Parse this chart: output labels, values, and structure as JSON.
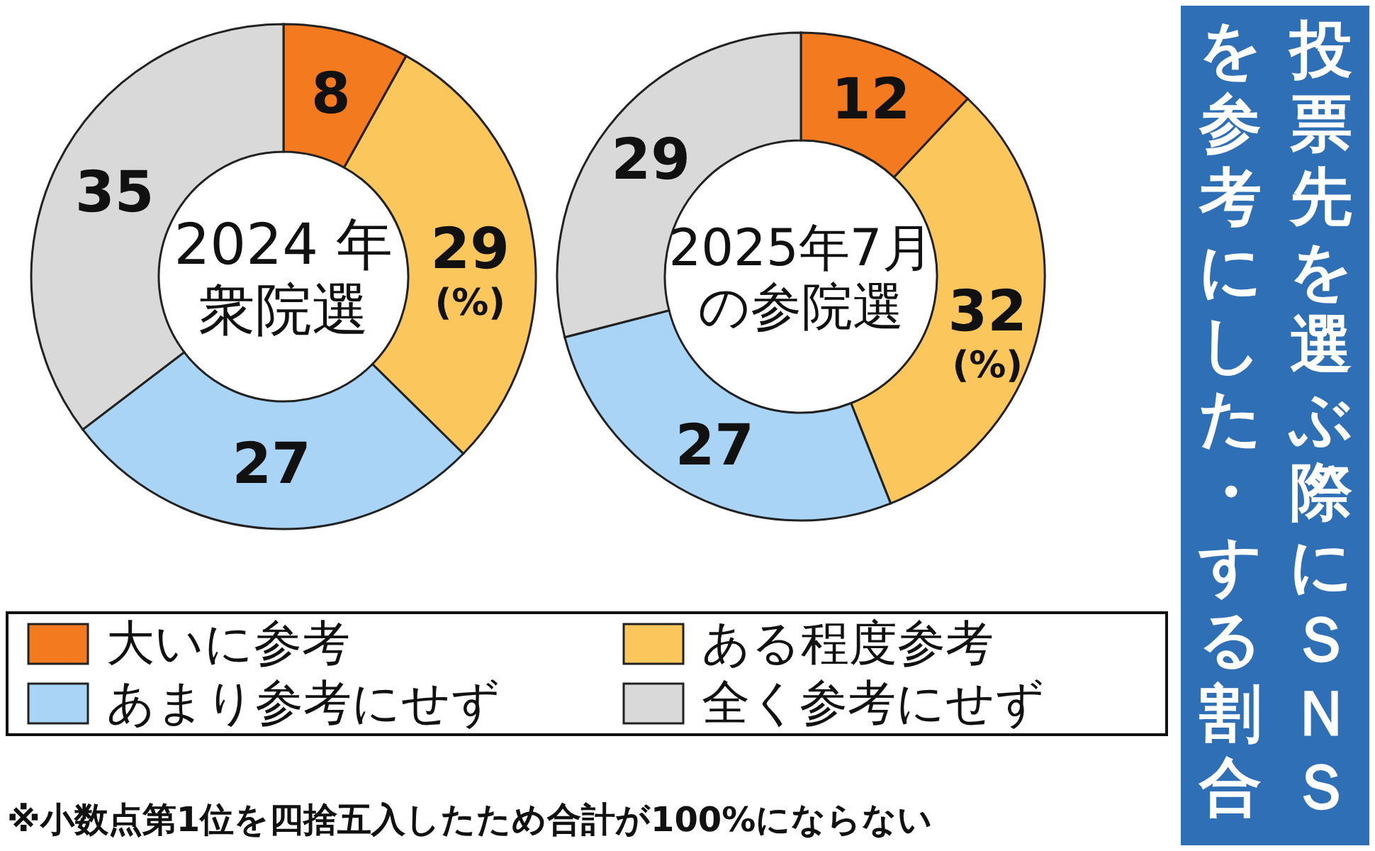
{
  "chart_data": [
    {
      "type": "donut",
      "title": "2024 年衆院選",
      "categories": [
        "大いに参考",
        "ある程度参考",
        "あまり参考にせず",
        "全く参考にせず"
      ],
      "values": [
        8,
        29,
        27,
        35
      ],
      "colors": [
        "#f47a20",
        "#fbc65c",
        "#a9d4f5",
        "#d9d9d9"
      ],
      "data_labels": true,
      "legend": "bottom",
      "annotations": [
        "(%)",
        "※小数点第1位を四捨五入したため合計が100%にならない"
      ]
    },
    {
      "type": "donut",
      "title": "2025年7月の参院選",
      "categories": [
        null,
        null,
        null,
        null
      ],
      "values": [
        12,
        32,
        27,
        29
      ],
      "colors": [
        "#f47a20",
        "#fbc65c",
        "#a9d4f5",
        "#d9d9d9"
      ],
      "data_labels": true,
      "annotations": [
        "(%)",
        "投票先を選ぶ際にＳＮＳを参考にした・する割合"
      ]
    }
  ]
}
